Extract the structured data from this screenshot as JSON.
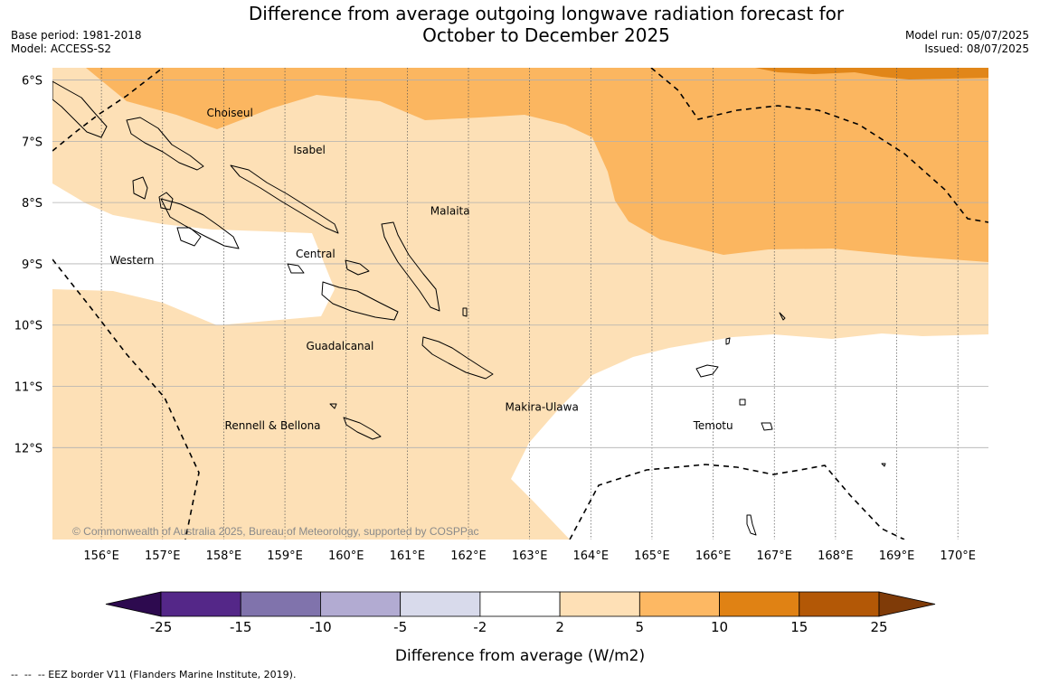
{
  "header": {
    "title_line1": "Difference from average outgoing longwave radiation forecast for",
    "title_line2": "October to December 2025",
    "base_period": "Base period: 1981-2018",
    "model": "Model: ACCESS-S2",
    "model_run": "Model run: 05/07/2025",
    "issued": "Issued: 08/07/2025"
  },
  "map": {
    "lon_range": [
      155.2,
      170.5
    ],
    "lat_range": [
      -5.8,
      -13.5
    ],
    "lon_ticks": [
      "156°E",
      "157°E",
      "158°E",
      "159°E",
      "160°E",
      "161°E",
      "162°E",
      "163°E",
      "164°E",
      "165°E",
      "166°E",
      "167°E",
      "168°E",
      "169°E",
      "170°E"
    ],
    "lat_ticks": [
      "6°S",
      "7°S",
      "8°S",
      "9°S",
      "10°S",
      "11°S",
      "12°S"
    ],
    "province_labels": [
      {
        "name": "Choiseul",
        "lon": 158.1,
        "lat": -6.6
      },
      {
        "name": "Isabel",
        "lon": 159.4,
        "lat": -7.2
      },
      {
        "name": "Malaita",
        "lon": 161.7,
        "lat": -8.2
      },
      {
        "name": "Western",
        "lon": 156.5,
        "lat": -9.0
      },
      {
        "name": "Central",
        "lon": 159.5,
        "lat": -8.9
      },
      {
        "name": "Guadalcanal",
        "lon": 159.9,
        "lat": -10.4
      },
      {
        "name": "Makira-Ulawa",
        "lon": 163.2,
        "lat": -11.4
      },
      {
        "name": "Rennell & Bellona",
        "lon": 158.8,
        "lat": -11.7
      },
      {
        "name": "Temotu",
        "lon": 166.0,
        "lat": -11.7
      }
    ],
    "copyright": "© Commonwealth of Australia 2025, Bureau of Meteorology, supported by COSPPac",
    "colors": {
      "c2_5": "#fde0b6",
      "c5_10": "#fbb660",
      "c10_15": "#e18619",
      "white": "#ffffff"
    }
  },
  "colorbar": {
    "ticks": [
      "-25",
      "-15",
      "-10",
      "-5",
      "-2",
      "2",
      "5",
      "10",
      "15",
      "25"
    ],
    "colors": [
      "#2d0a4f",
      "#542788",
      "#8073ac",
      "#b2abd2",
      "#d8daeb",
      "#ffffff",
      "#fee0b6",
      "#fdb863",
      "#e08214",
      "#b35806",
      "#7f3b08"
    ],
    "label": "Difference from average (W/m2)"
  },
  "footnote": "--  --  -- EEZ border V11 (Flanders Marine Institute, 2019)."
}
